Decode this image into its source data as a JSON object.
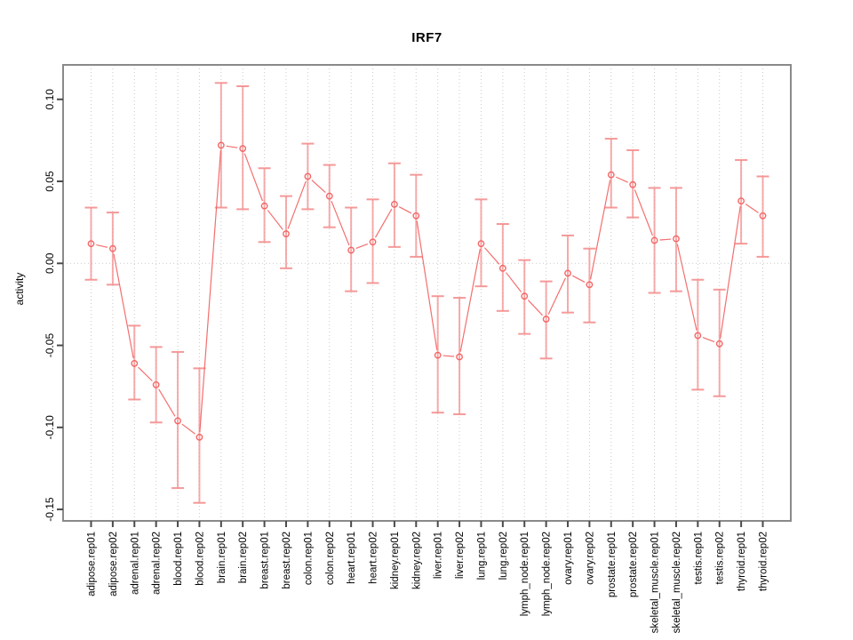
{
  "chart_data": {
    "type": "line",
    "title": "IRF7",
    "ylabel": "activity",
    "xlabel": "",
    "legend": "none",
    "grid": "vertical dotted line at every category; horizontal dotted line at y=0",
    "marker": "open-circle",
    "error_bars": true,
    "ylim": [
      -0.157,
      0.121
    ],
    "ytick_labels": [
      "0.10",
      "0.05",
      "0.00",
      "-0.05",
      "-0.10",
      "-0.15"
    ],
    "ytick_values": [
      0.1,
      0.05,
      0.0,
      -0.05,
      -0.1,
      -0.15
    ],
    "categories": [
      "adipose.rep01",
      "adipose.rep02",
      "adrenal.rep01",
      "adrenal.rep02",
      "blood.rep01",
      "blood.rep02",
      "brain.rep01",
      "brain.rep02",
      "breast.rep01",
      "breast.rep02",
      "colon.rep01",
      "colon.rep02",
      "heart.rep01",
      "heart.rep02",
      "kidney.rep01",
      "kidney.rep02",
      "liver.rep01",
      "liver.rep02",
      "lung.rep01",
      "lung.rep02",
      "lymph_node.rep01",
      "lymph_node.rep02",
      "ovary.rep01",
      "ovary.rep02",
      "prostate.rep01",
      "prostate.rep02",
      "skeletal_muscle.rep01",
      "skeletal_muscle.rep02",
      "testis.rep01",
      "testis.rep02",
      "thyroid.rep01",
      "thyroid.rep02"
    ],
    "series": [
      {
        "name": "activity",
        "values": [
          0.012,
          0.009,
          -0.061,
          -0.074,
          -0.096,
          -0.106,
          0.072,
          0.07,
          0.035,
          0.018,
          0.053,
          0.041,
          0.008,
          0.013,
          0.036,
          0.029,
          -0.056,
          -0.057,
          0.012,
          -0.003,
          -0.02,
          -0.034,
          -0.006,
          -0.013,
          0.054,
          0.048,
          0.014,
          0.015,
          -0.044,
          -0.049,
          0.038,
          0.029
        ],
        "upper": [
          0.034,
          0.031,
          -0.038,
          -0.051,
          -0.054,
          -0.064,
          0.11,
          0.108,
          0.058,
          0.041,
          0.073,
          0.06,
          0.034,
          0.039,
          0.061,
          0.054,
          -0.02,
          -0.021,
          0.039,
          0.024,
          0.002,
          -0.011,
          0.017,
          0.009,
          0.076,
          0.069,
          0.046,
          0.046,
          -0.01,
          -0.016,
          0.063,
          0.053
        ],
        "lower": [
          -0.01,
          -0.013,
          -0.083,
          -0.097,
          -0.137,
          -0.146,
          0.034,
          0.033,
          0.013,
          -0.003,
          0.033,
          0.022,
          -0.017,
          -0.012,
          0.01,
          0.004,
          -0.091,
          -0.092,
          -0.014,
          -0.029,
          -0.043,
          -0.058,
          -0.03,
          -0.036,
          0.034,
          0.028,
          -0.018,
          -0.017,
          -0.077,
          -0.081,
          0.012,
          0.004
        ]
      }
    ],
    "colors": {
      "point": "#f25f5f",
      "line": "#f25f5f",
      "error_bar": "#f58f8f",
      "grid": "#c9c9c9",
      "frame": "#8a8a8a",
      "tick": "#4a4a4a",
      "text": "#000000",
      "background": "#ffffff"
    }
  }
}
